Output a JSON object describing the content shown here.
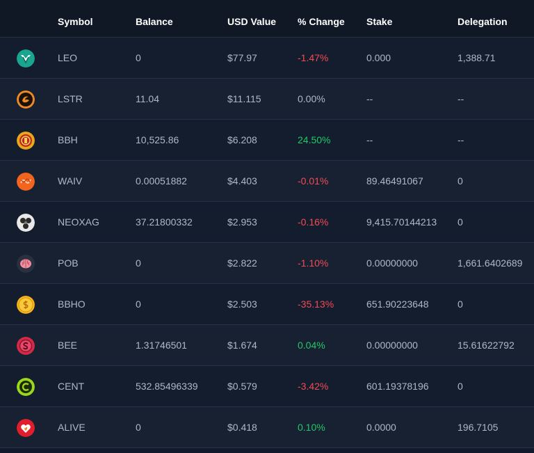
{
  "header": {
    "symbol": "Symbol",
    "balance": "Balance",
    "usd_value": "USD Value",
    "change": "% Change",
    "stake": "Stake",
    "delegation": "Delegation"
  },
  "rows": [
    {
      "symbol": "LEO",
      "icon": "leo-token-icon",
      "balance": "0",
      "usd_value": "$77.97",
      "change": "-1.47%",
      "change_dir": "neg",
      "stake": "0.000",
      "delegation": "1,388.71"
    },
    {
      "symbol": "LSTR",
      "icon": "lstr-token-icon",
      "balance": "11.04",
      "usd_value": "$11.115",
      "change": "0.00%",
      "change_dir": "neutral",
      "stake": "--",
      "delegation": "--"
    },
    {
      "symbol": "BBH",
      "icon": "bbh-token-icon",
      "balance": "10,525.86",
      "usd_value": "$6.208",
      "change": "24.50%",
      "change_dir": "pos",
      "stake": "--",
      "delegation": "--"
    },
    {
      "symbol": "WAIV",
      "icon": "waiv-token-icon",
      "balance": "0.00051882",
      "usd_value": "$4.403",
      "change": "-0.01%",
      "change_dir": "neg",
      "stake": "89.46491067",
      "delegation": "0"
    },
    {
      "symbol": "NEOXAG",
      "icon": "neoxag-token-icon",
      "balance": "37.21800332",
      "usd_value": "$2.953",
      "change": "-0.16%",
      "change_dir": "neg",
      "stake": "9,415.70144213",
      "delegation": "0"
    },
    {
      "symbol": "POB",
      "icon": "pob-brain-icon",
      "balance": "0",
      "usd_value": "$2.822",
      "change": "-1.10%",
      "change_dir": "neg",
      "stake": "0.00000000",
      "delegation": "1,661.6402689"
    },
    {
      "symbol": "BBHO",
      "icon": "bbho-coin-icon",
      "balance": "0",
      "usd_value": "$2.503",
      "change": "-35.13%",
      "change_dir": "neg",
      "stake": "651.90223648",
      "delegation": "0"
    },
    {
      "symbol": "BEE",
      "icon": "bee-token-icon",
      "balance": "1.31746501",
      "usd_value": "$1.674",
      "change": "0.04%",
      "change_dir": "pos",
      "stake": "0.00000000",
      "delegation": "15.61622792"
    },
    {
      "symbol": "CENT",
      "icon": "cent-token-icon",
      "balance": "532.85496339",
      "usd_value": "$0.579",
      "change": "-3.42%",
      "change_dir": "neg",
      "stake": "601.19378196",
      "delegation": "0"
    },
    {
      "symbol": "ALIVE",
      "icon": "alive-heart-icon",
      "balance": "0",
      "usd_value": "$0.418",
      "change": "0.10%",
      "change_dir": "pos",
      "stake": "0.0000",
      "delegation": "196.7105"
    }
  ],
  "colors": {
    "negative": "#f14b54",
    "positive": "#20c968",
    "text": "#aeb8c6"
  }
}
